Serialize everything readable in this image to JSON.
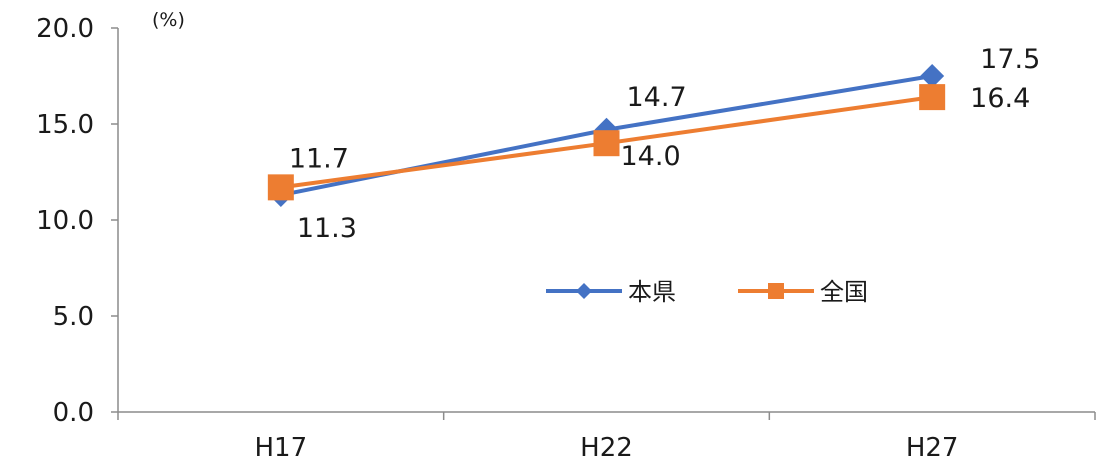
{
  "chart_data": {
    "type": "line",
    "unit": "(%)",
    "categories": [
      "H17",
      "H22",
      "H27"
    ],
    "ylim": [
      0,
      20
    ],
    "yticks": [
      0,
      5,
      10,
      15,
      20
    ],
    "ytick_labels": [
      "0.0",
      "5.0",
      "10.0",
      "15.0",
      "20.0"
    ],
    "grid": false,
    "legend_position": "center-right",
    "series": [
      {
        "name": "本県",
        "values": [
          11.3,
          14.7,
          17.5
        ],
        "labels": [
          "11.3",
          "14.7",
          "17.5"
        ],
        "color": "#4472c4",
        "marker": "diamond"
      },
      {
        "name": "全国",
        "values": [
          11.7,
          14.0,
          16.4
        ],
        "labels": [
          "11.7",
          "14.0",
          "16.4"
        ],
        "color": "#ed7d31",
        "marker": "square"
      }
    ]
  }
}
